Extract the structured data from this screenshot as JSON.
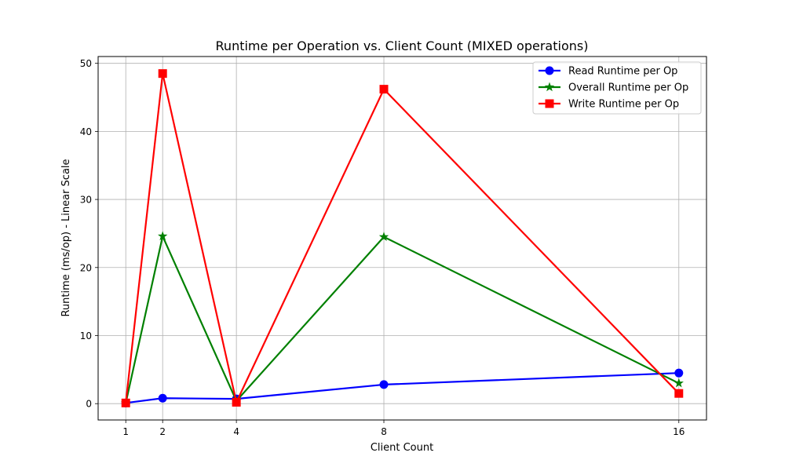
{
  "chart_data": {
    "type": "line",
    "title": "Runtime per Operation vs. Client Count (MIXED operations)",
    "xlabel": "Client Count",
    "ylabel": "Runtime (ms/op) - Linear Scale",
    "x": [
      1,
      2,
      4,
      8,
      16
    ],
    "x_ticks": [
      1,
      2,
      4,
      8,
      16
    ],
    "y_ticks": [
      0,
      10,
      20,
      30,
      40,
      50
    ],
    "xlim": [
      0.25,
      16.75
    ],
    "ylim": [
      -2.4,
      51.0
    ],
    "grid": true,
    "legend_position": "top-right",
    "series": [
      {
        "name": "Read Runtime per Op",
        "color": "#0000ff",
        "marker": "circle",
        "values": [
          0.1,
          0.8,
          0.7,
          2.8,
          4.5
        ]
      },
      {
        "name": "Overall Runtime per Op",
        "color": "#008000",
        "marker": "star",
        "values": [
          0.1,
          24.6,
          0.4,
          24.5,
          3.0
        ]
      },
      {
        "name": "Write Runtime per Op",
        "color": "#ff0000",
        "marker": "square",
        "values": [
          0.1,
          48.5,
          0.2,
          46.2,
          1.5
        ]
      }
    ]
  }
}
